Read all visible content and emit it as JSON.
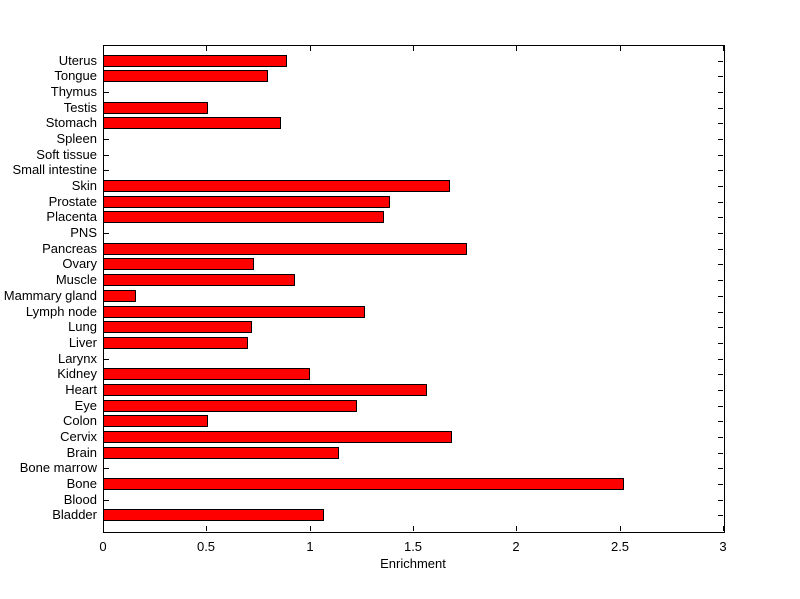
{
  "chart_data": {
    "type": "bar",
    "orientation": "horizontal",
    "title": "",
    "xlabel": "Enrichment",
    "ylabel": "",
    "xlim": [
      0,
      3
    ],
    "xticks": [
      0,
      0.5,
      1,
      1.5,
      2,
      2.5,
      3
    ],
    "xtick_labels": [
      "0",
      "0.5",
      "1",
      "1.5",
      "2",
      "2.5",
      "3"
    ],
    "grid": false,
    "legend": null,
    "bar_color": "#FF0000",
    "bar_edge_color": "#000000",
    "axis_color": "#000000",
    "background_color": "#FFFFFF",
    "categories": [
      "Uterus",
      "Tongue",
      "Thymus",
      "Testis",
      "Stomach",
      "Spleen",
      "Soft tissue",
      "Small intestine",
      "Skin",
      "Prostate",
      "Placenta",
      "PNS",
      "Pancreas",
      "Ovary",
      "Muscle",
      "Mammary gland",
      "Lymph node",
      "Lung",
      "Liver",
      "Larynx",
      "Kidney",
      "Heart",
      "Eye",
      "Colon",
      "Cervix",
      "Brain",
      "Bone marrow",
      "Bone",
      "Blood",
      "Bladder"
    ],
    "values": [
      0.89,
      0.8,
      0,
      0.51,
      0.86,
      0,
      0,
      0,
      1.68,
      1.39,
      1.36,
      0,
      1.76,
      0.73,
      0.93,
      0.16,
      1.27,
      0.72,
      0.7,
      0,
      1.0,
      1.57,
      1.23,
      0.51,
      1.69,
      1.14,
      0,
      2.52,
      0,
      1.07
    ]
  }
}
